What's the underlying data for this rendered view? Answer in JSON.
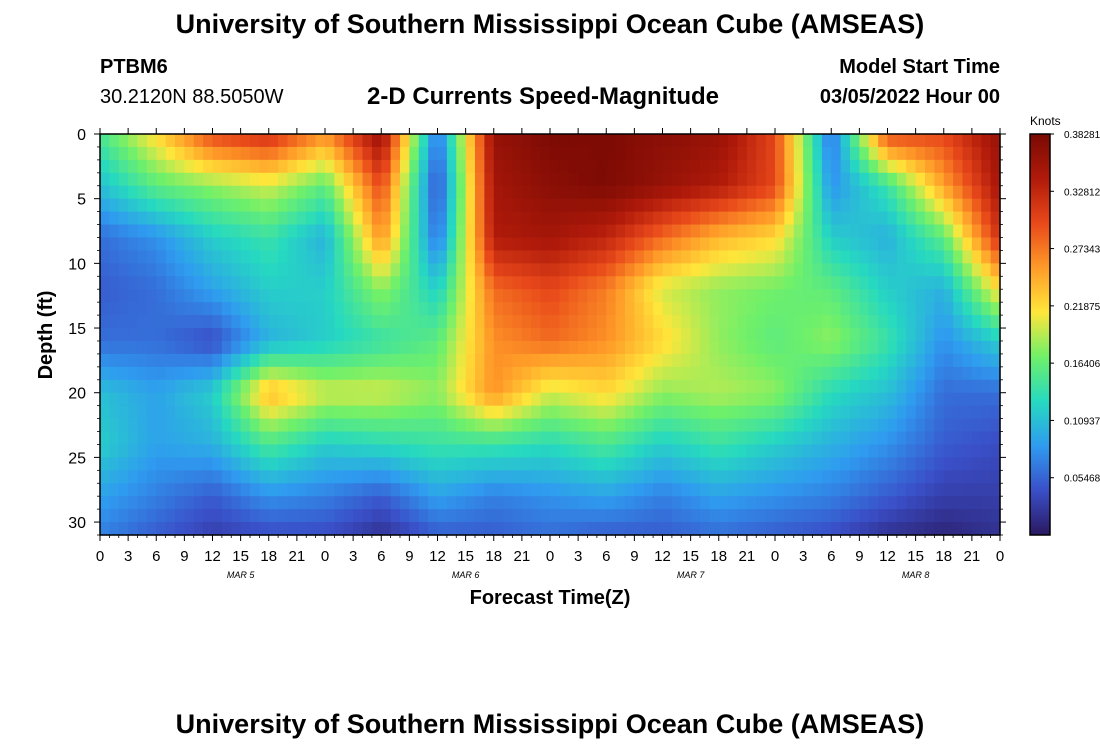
{
  "header": {
    "title": "University of Southern Mississippi Ocean Cube (AMSEAS)",
    "station": "PTBM6",
    "coordinates": "30.2120N  88.5050W",
    "subtitle": "2-D Currents Speed-Magnitude",
    "model_start_label": "Model Start Time",
    "model_start_value": "03/05/2022 Hour 00"
  },
  "footer": {
    "title": "University of Southern Mississippi Ocean Cube (AMSEAS)"
  },
  "chart_data": {
    "type": "heatmap",
    "title": "2-D Currents Speed-Magnitude",
    "xlabel": "Forecast Time(Z)",
    "ylabel": "Depth (ft)",
    "x_ticks": [
      "0",
      "3",
      "6",
      "9",
      "12",
      "15",
      "18",
      "21",
      "0",
      "3",
      "6",
      "9",
      "12",
      "15",
      "18",
      "21",
      "0",
      "3",
      "6",
      "9",
      "12",
      "15",
      "18",
      "21",
      "0",
      "3",
      "6",
      "9",
      "12",
      "15",
      "18",
      "21",
      "0"
    ],
    "x_hours": [
      0,
      96
    ],
    "date_labels": [
      {
        "label": "MAR 5",
        "hour": 15
      },
      {
        "label": "MAR 6",
        "hour": 39
      },
      {
        "label": "MAR 7",
        "hour": 63
      },
      {
        "label": "MAR 8",
        "hour": 87
      }
    ],
    "y_ticks": [
      "0",
      "5",
      "10",
      "15",
      "20",
      "25",
      "30"
    ],
    "ylim": [
      0,
      31
    ],
    "y_inverted": true,
    "colorbar": {
      "unit": "Knots",
      "ticks": [
        "0.38281",
        "0.32812",
        "0.27343",
        "0.21875",
        "0.16406",
        "0.10937",
        "0.05468"
      ],
      "range": [
        0,
        0.3828
      ],
      "colors": [
        "#2a1860",
        "#3a4fc8",
        "#2f9bf0",
        "#26d9c0",
        "#6ff06a",
        "#ffe63a",
        "#ff9a28",
        "#e8481a",
        "#b01a0a",
        "#7a0a04"
      ]
    },
    "hours": [
      0,
      6,
      12,
      18,
      24,
      30,
      36,
      42,
      48,
      54,
      60,
      66,
      72,
      78,
      84,
      90,
      96
    ],
    "depths": [
      0,
      4,
      8,
      12,
      16,
      20,
      24,
      28,
      31
    ],
    "speed": [
      [
        0.15,
        0.22,
        0.3,
        0.32,
        0.26,
        0.36,
        0.06,
        0.36,
        0.38,
        0.38,
        0.37,
        0.36,
        0.3,
        0.06,
        0.3,
        0.3,
        0.36
      ],
      [
        0.11,
        0.16,
        0.18,
        0.2,
        0.16,
        0.3,
        0.04,
        0.35,
        0.37,
        0.38,
        0.36,
        0.34,
        0.3,
        0.08,
        0.14,
        0.25,
        0.35
      ],
      [
        0.06,
        0.08,
        0.12,
        0.14,
        0.1,
        0.26,
        0.06,
        0.34,
        0.35,
        0.33,
        0.28,
        0.24,
        0.22,
        0.12,
        0.1,
        0.16,
        0.32
      ],
      [
        0.05,
        0.06,
        0.09,
        0.12,
        0.12,
        0.18,
        0.12,
        0.28,
        0.3,
        0.27,
        0.2,
        0.18,
        0.17,
        0.16,
        0.12,
        0.1,
        0.22
      ],
      [
        0.06,
        0.06,
        0.04,
        0.1,
        0.12,
        0.14,
        0.16,
        0.26,
        0.28,
        0.26,
        0.22,
        0.18,
        0.16,
        0.18,
        0.14,
        0.08,
        0.12
      ],
      [
        0.11,
        0.09,
        0.12,
        0.24,
        0.2,
        0.2,
        0.18,
        0.26,
        0.2,
        0.22,
        0.18,
        0.19,
        0.18,
        0.13,
        0.11,
        0.06,
        0.06
      ],
      [
        0.12,
        0.09,
        0.1,
        0.15,
        0.12,
        0.13,
        0.14,
        0.14,
        0.13,
        0.15,
        0.12,
        0.14,
        0.12,
        0.1,
        0.08,
        0.05,
        0.04
      ],
      [
        0.09,
        0.07,
        0.05,
        0.08,
        0.07,
        0.05,
        0.09,
        0.07,
        0.08,
        0.09,
        0.07,
        0.09,
        0.08,
        0.07,
        0.05,
        0.03,
        0.03
      ],
      [
        0.07,
        0.05,
        0.03,
        0.04,
        0.04,
        0.02,
        0.05,
        0.05,
        0.06,
        0.05,
        0.05,
        0.06,
        0.05,
        0.04,
        0.02,
        0.01,
        0.02
      ]
    ]
  }
}
